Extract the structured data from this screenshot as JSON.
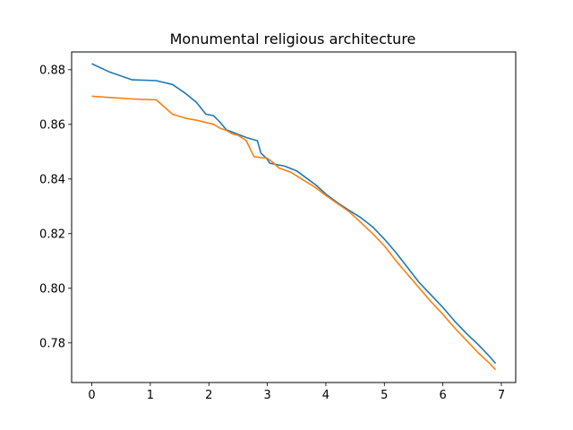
{
  "chart_data": {
    "type": "line",
    "title": "Monumental religious architecture",
    "xlabel": "",
    "ylabel": "",
    "xlim": [
      -0.345,
      7.245
    ],
    "ylim": [
      0.7655,
      0.8865
    ],
    "x_ticks": [
      0,
      1,
      2,
      3,
      4,
      5,
      6,
      7
    ],
    "y_ticks": [
      0.78,
      0.8,
      0.82,
      0.84,
      0.86,
      0.88
    ],
    "grid": false,
    "legend": "none",
    "series": [
      {
        "color": "#1f77b4",
        "points": [
          [
            0.0,
            0.8822
          ],
          [
            0.3,
            0.8792
          ],
          [
            0.69,
            0.8763
          ],
          [
            1.1,
            0.876
          ],
          [
            1.38,
            0.8746
          ],
          [
            1.61,
            0.8712
          ],
          [
            1.79,
            0.868
          ],
          [
            1.95,
            0.8637
          ],
          [
            2.08,
            0.8632
          ],
          [
            2.2,
            0.8606
          ],
          [
            2.3,
            0.858
          ],
          [
            2.48,
            0.8565
          ],
          [
            2.64,
            0.8552
          ],
          [
            2.83,
            0.854
          ],
          [
            2.89,
            0.8495
          ],
          [
            3.0,
            0.8472
          ],
          [
            3.04,
            0.8458
          ],
          [
            3.3,
            0.8447
          ],
          [
            3.5,
            0.843
          ],
          [
            3.69,
            0.84
          ],
          [
            3.83,
            0.8378
          ],
          [
            4.0,
            0.8345
          ],
          [
            4.2,
            0.8313
          ],
          [
            4.4,
            0.8285
          ],
          [
            4.6,
            0.8258
          ],
          [
            4.8,
            0.8225
          ],
          [
            5.0,
            0.818
          ],
          [
            5.2,
            0.813
          ],
          [
            5.4,
            0.8075
          ],
          [
            5.6,
            0.802
          ],
          [
            5.8,
            0.7975
          ],
          [
            6.0,
            0.793
          ],
          [
            6.2,
            0.788
          ],
          [
            6.4,
            0.7835
          ],
          [
            6.6,
            0.7795
          ],
          [
            6.8,
            0.775
          ],
          [
            6.9,
            0.7725
          ]
        ]
      },
      {
        "color": "#ff7f0e",
        "points": [
          [
            0.0,
            0.8703
          ],
          [
            0.69,
            0.8693
          ],
          [
            1.1,
            0.869
          ],
          [
            1.38,
            0.8637
          ],
          [
            1.61,
            0.8622
          ],
          [
            1.79,
            0.8615
          ],
          [
            1.95,
            0.8607
          ],
          [
            2.08,
            0.86
          ],
          [
            2.2,
            0.8585
          ],
          [
            2.3,
            0.8578
          ],
          [
            2.4,
            0.8565
          ],
          [
            2.5,
            0.856
          ],
          [
            2.64,
            0.854
          ],
          [
            2.77,
            0.8482
          ],
          [
            2.89,
            0.8478
          ],
          [
            3.0,
            0.8476
          ],
          [
            3.1,
            0.846
          ],
          [
            3.2,
            0.844
          ],
          [
            3.4,
            0.8425
          ],
          [
            3.6,
            0.8398
          ],
          [
            3.8,
            0.8372
          ],
          [
            4.0,
            0.834
          ],
          [
            4.2,
            0.831
          ],
          [
            4.4,
            0.828
          ],
          [
            4.6,
            0.824
          ],
          [
            4.8,
            0.82
          ],
          [
            5.0,
            0.8155
          ],
          [
            5.2,
            0.81
          ],
          [
            5.4,
            0.805
          ],
          [
            5.6,
            0.8
          ],
          [
            5.8,
            0.795
          ],
          [
            6.0,
            0.7905
          ],
          [
            6.2,
            0.7855
          ],
          [
            6.4,
            0.781
          ],
          [
            6.6,
            0.7765
          ],
          [
            6.8,
            0.7725
          ],
          [
            6.9,
            0.7702
          ]
        ]
      }
    ]
  }
}
